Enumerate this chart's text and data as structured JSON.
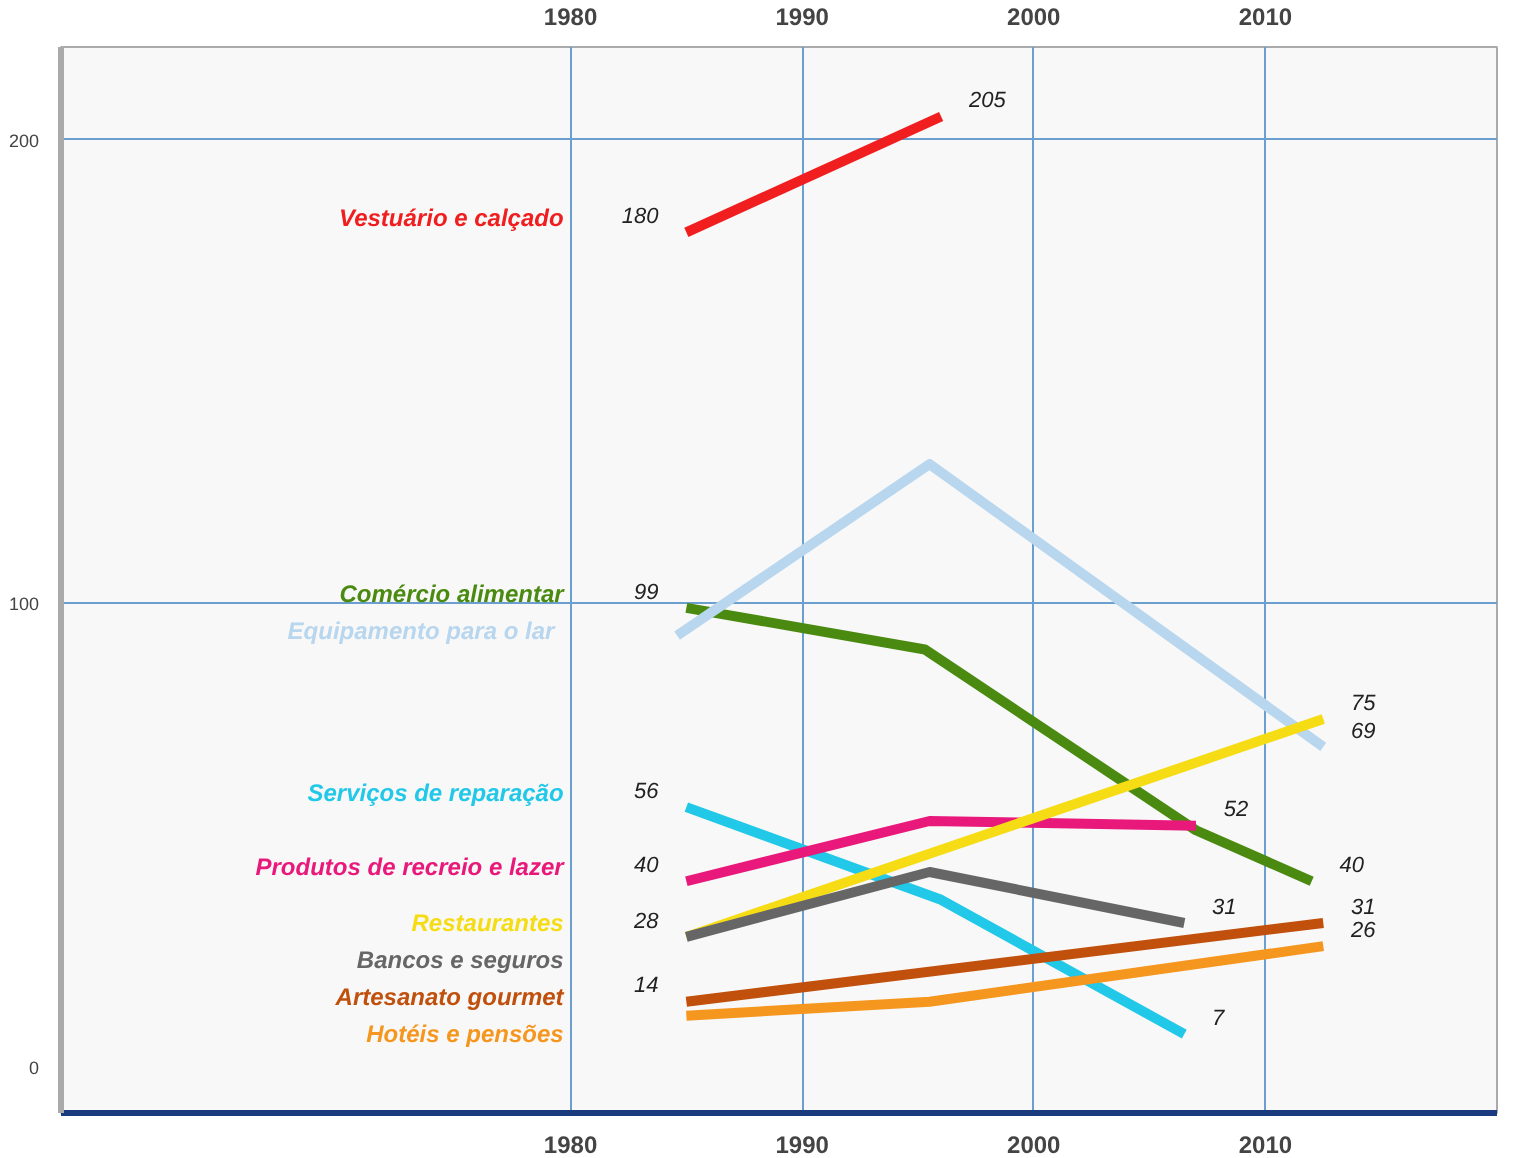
{
  "chart_data": {
    "type": "line",
    "xlim": [
      1958,
      2020
    ],
    "ylim": [
      -10,
      220
    ],
    "xticks": [
      1980,
      1990,
      2000,
      2010
    ],
    "x2lim": [
      1958,
      2020
    ],
    "x2ticks": [
      1980,
      1990,
      2000,
      2010
    ],
    "yticks": [
      0,
      100,
      200
    ],
    "grid": true,
    "marker": "none",
    "line_style": "solid",
    "series": [
      {
        "name": "Vestuário e calçado",
        "color": "#f01e1e",
        "x": [
          1985,
          1996
        ],
        "values": [
          180,
          205
        ],
        "value_labels": [
          "180",
          "205"
        ]
      },
      {
        "name": "Comércio alimentar",
        "color": "#4a8a10",
        "x": [
          1985,
          1995.3,
          2007,
          2012
        ],
        "values": [
          99,
          90,
          51,
          40
        ],
        "value_labels": [
          "99",
          null,
          null,
          "40"
        ]
      },
      {
        "name": "Equipamento para o lar",
        "color": "#b8d6ee",
        "x": [
          1984.6,
          1995.5,
          2012.5
        ],
        "values": [
          93,
          130,
          69
        ],
        "value_labels": [
          null,
          null,
          "69"
        ]
      },
      {
        "name": "Serviços de reparação",
        "color": "#22c8e8",
        "x": [
          1985,
          1996,
          2006.5
        ],
        "values": [
          56,
          36,
          7
        ],
        "value_labels": [
          "56",
          null,
          "7"
        ]
      },
      {
        "name": "Produtos de recreio e lazer",
        "color": "#e8197a",
        "x": [
          1985,
          1995.5,
          2007
        ],
        "values": [
          40,
          53,
          52
        ],
        "value_labels": [
          "40",
          null,
          "52"
        ]
      },
      {
        "name": "Restaurantes",
        "color": "#f5dc14",
        "x": [
          1985,
          2012.5
        ],
        "values": [
          28,
          75
        ],
        "value_labels": [
          "28",
          "75"
        ]
      },
      {
        "name": "Bancos e seguros",
        "color": "#666666",
        "x": [
          1985,
          1995.5,
          2006.5
        ],
        "values": [
          28,
          42,
          31
        ],
        "value_labels": [
          null,
          null,
          "31"
        ]
      },
      {
        "name": "Artesanato gourmet",
        "color": "#c0500c",
        "x": [
          1985,
          2012.5
        ],
        "values": [
          14,
          31
        ],
        "value_labels": [
          "14",
          "31"
        ]
      },
      {
        "name": "Hotéis e pensões",
        "color": "#f5961e",
        "x": [
          1985,
          1995.5,
          2012.5
        ],
        "values": [
          11,
          14,
          26
        ],
        "value_labels": [
          null,
          null,
          "26"
        ]
      }
    ]
  }
}
